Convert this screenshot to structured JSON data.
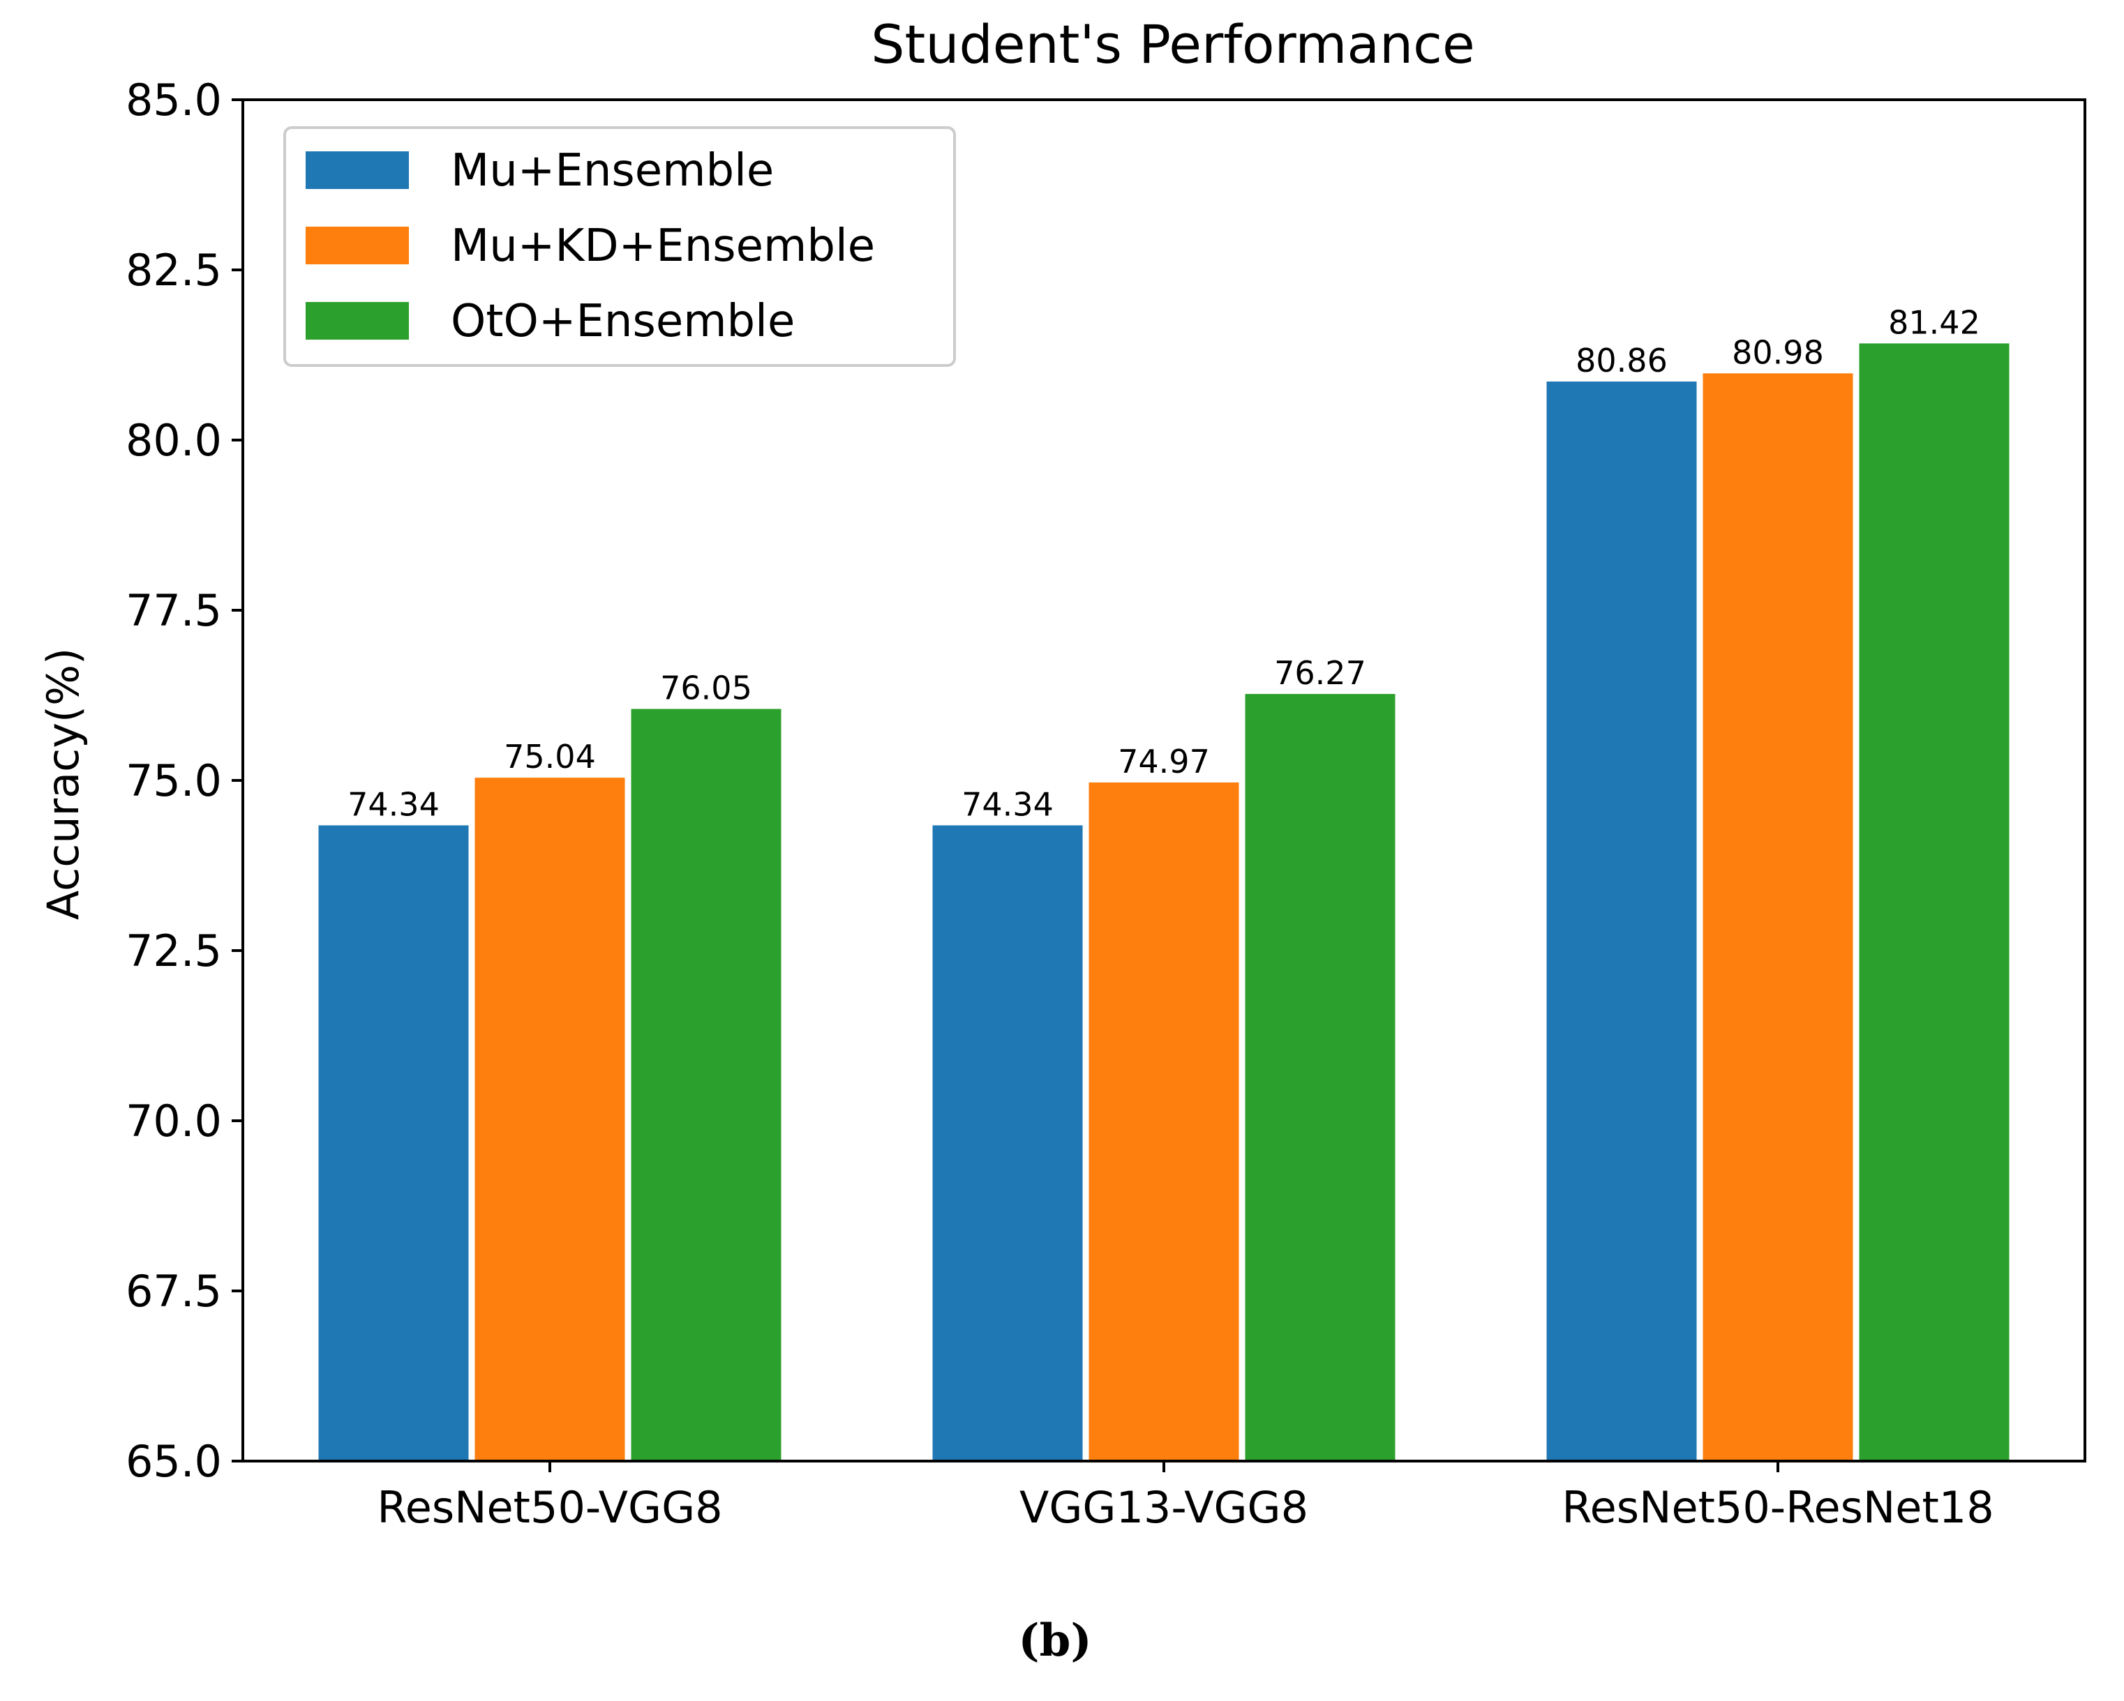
{
  "chart_data": {
    "type": "bar",
    "title": "Student's Performance",
    "xlabel": "",
    "ylabel": "Accuracy(%)",
    "ylim": [
      65.0,
      85.0
    ],
    "yticks": [
      "65.0",
      "67.5",
      "70.0",
      "72.5",
      "75.0",
      "77.5",
      "80.0",
      "82.5",
      "85.0"
    ],
    "categories": [
      "ResNet50-VGG8",
      "VGG13-VGG8",
      "ResNet50-ResNet18"
    ],
    "series": [
      {
        "name": "Mu+Ensemble",
        "color": "#1f77b4",
        "values": [
          74.34,
          74.34,
          80.86
        ],
        "labels": [
          "74.34",
          "74.34",
          "80.86"
        ]
      },
      {
        "name": "Mu+KD+Ensemble",
        "color": "#ff7f0e",
        "values": [
          75.04,
          74.97,
          80.98
        ],
        "labels": [
          "75.04",
          "74.97",
          "80.98"
        ]
      },
      {
        "name": "OtO+Ensemble",
        "color": "#2ca02c",
        "values": [
          76.05,
          76.27,
          81.42
        ],
        "labels": [
          "76.05",
          "76.27",
          "81.42"
        ]
      }
    ],
    "legend_position": "top-left",
    "grid": false
  },
  "caption": "(b)"
}
